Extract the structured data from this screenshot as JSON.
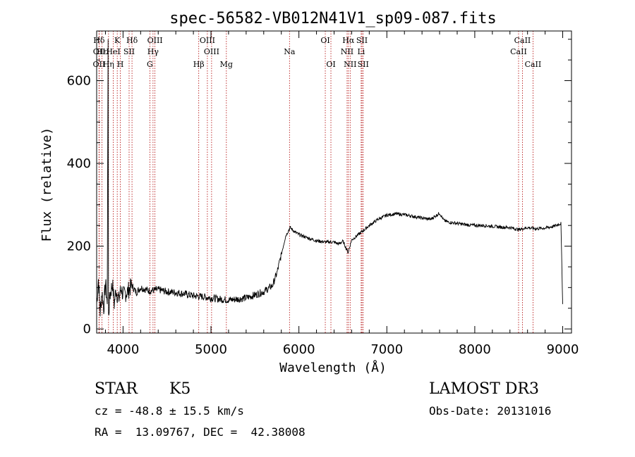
{
  "chart_data": {
    "type": "line",
    "title": "spec-56582-VB012N41V1_sp09-087.fits",
    "xlabel": "Wavelength (Å)",
    "ylabel": "Flux (relative)",
    "xlim": [
      3700,
      9100
    ],
    "ylim": [
      -10,
      720
    ],
    "xticks": [
      4000,
      5000,
      6000,
      7000,
      8000,
      9000
    ],
    "yticks": [
      0,
      200,
      400,
      600
    ],
    "grid": false,
    "series": [
      {
        "name": "flux",
        "color": "#000000",
        "points": [
          [
            3700,
            60
          ],
          [
            3720,
            120
          ],
          [
            3740,
            40
          ],
          [
            3760,
            90
          ],
          [
            3780,
            50
          ],
          [
            3800,
            110
          ],
          [
            3820,
            60
          ],
          [
            3830,
            700
          ],
          [
            3835,
            30
          ],
          [
            3850,
            80
          ],
          [
            3880,
            110
          ],
          [
            3900,
            60
          ],
          [
            3920,
            95
          ],
          [
            3950,
            70
          ],
          [
            3980,
            100
          ],
          [
            4000,
            80
          ],
          [
            4050,
            90
          ],
          [
            4100,
            105
          ],
          [
            4150,
            88
          ],
          [
            4200,
            100
          ],
          [
            4300,
            92
          ],
          [
            4400,
            95
          ],
          [
            4500,
            90
          ],
          [
            4600,
            88
          ],
          [
            4700,
            85
          ],
          [
            4800,
            80
          ],
          [
            4900,
            78
          ],
          [
            5000,
            75
          ],
          [
            5100,
            72
          ],
          [
            5200,
            70
          ],
          [
            5300,
            72
          ],
          [
            5400,
            75
          ],
          [
            5500,
            82
          ],
          [
            5600,
            90
          ],
          [
            5700,
            105
          ],
          [
            5750,
            135
          ],
          [
            5800,
            180
          ],
          [
            5850,
            225
          ],
          [
            5900,
            245
          ],
          [
            5950,
            235
          ],
          [
            6000,
            228
          ],
          [
            6100,
            220
          ],
          [
            6200,
            213
          ],
          [
            6300,
            210
          ],
          [
            6400,
            210
          ],
          [
            6450,
            205
          ],
          [
            6500,
            212
          ],
          [
            6560,
            185
          ],
          [
            6600,
            215
          ],
          [
            6700,
            232
          ],
          [
            6800,
            250
          ],
          [
            6900,
            265
          ],
          [
            7000,
            275
          ],
          [
            7100,
            278
          ],
          [
            7200,
            276
          ],
          [
            7300,
            272
          ],
          [
            7400,
            268
          ],
          [
            7500,
            265
          ],
          [
            7600,
            280
          ],
          [
            7650,
            262
          ],
          [
            7700,
            258
          ],
          [
            7800,
            255
          ],
          [
            7900,
            252
          ],
          [
            8000,
            250
          ],
          [
            8100,
            250
          ],
          [
            8200,
            248
          ],
          [
            8300,
            246
          ],
          [
            8400,
            245
          ],
          [
            8500,
            240
          ],
          [
            8600,
            245
          ],
          [
            8700,
            242
          ],
          [
            8800,
            244
          ],
          [
            8900,
            248
          ],
          [
            8980,
            255
          ],
          [
            9000,
            60
          ]
        ]
      }
    ],
    "lines": [
      {
        "name": "Hδ",
        "wavelength": 3727,
        "row": 1
      },
      {
        "name": "OII",
        "wavelength": 3729,
        "row": 2
      },
      {
        "name": "OII",
        "wavelength": 3727,
        "row": 3
      },
      {
        "name": "Hε",
        "wavelength": 3760,
        "row": 2
      },
      {
        "name": "Hη",
        "wavelength": 3835,
        "row": 3
      },
      {
        "name": "K",
        "wavelength": 3934,
        "row": 1
      },
      {
        "name": "HeI",
        "wavelength": 3889,
        "row": 2
      },
      {
        "name": "H",
        "wavelength": 3969,
        "row": 3
      },
      {
        "name": "Hδ",
        "wavelength": 4102,
        "row": 1
      },
      {
        "name": "SII",
        "wavelength": 4069,
        "row": 2
      },
      {
        "name": "OIII",
        "wavelength": 4363,
        "row": 1
      },
      {
        "name": "Hγ",
        "wavelength": 4341,
        "row": 2
      },
      {
        "name": "G",
        "wavelength": 4305,
        "row": 3
      },
      {
        "name": "Hβ",
        "wavelength": 4861,
        "row": 3
      },
      {
        "name": "OIII",
        "wavelength": 4959,
        "row": 1
      },
      {
        "name": "OIII",
        "wavelength": 5007,
        "row": 2
      },
      {
        "name": "Mg",
        "wavelength": 5175,
        "row": 3
      },
      {
        "name": "Na",
        "wavelength": 5893,
        "row": 2
      },
      {
        "name": "OI",
        "wavelength": 6300,
        "row": 1
      },
      {
        "name": "OI",
        "wavelength": 6364,
        "row": 3
      },
      {
        "name": "Hα",
        "wavelength": 6563,
        "row": 1
      },
      {
        "name": "NII",
        "wavelength": 6548,
        "row": 2
      },
      {
        "name": "NII",
        "wavelength": 6583,
        "row": 3
      },
      {
        "name": "SII",
        "wavelength": 6717,
        "row": 1
      },
      {
        "name": "Li",
        "wavelength": 6708,
        "row": 2
      },
      {
        "name": "SII",
        "wavelength": 6731,
        "row": 3
      },
      {
        "name": "CaII",
        "wavelength": 8542,
        "row": 1
      },
      {
        "name": "CaII",
        "wavelength": 8498,
        "row": 2
      },
      {
        "name": "CaII",
        "wavelength": 8662,
        "row": 3
      }
    ]
  },
  "info": {
    "class_label": "STAR",
    "subclass": "K5",
    "survey": "LAMOST DR3",
    "cz": "cz = -48.8 ± 15.5 km/s",
    "obs_date": "Obs-Date: 20131016",
    "coords": "RA =  13.09767, DEC =  42.38008"
  }
}
